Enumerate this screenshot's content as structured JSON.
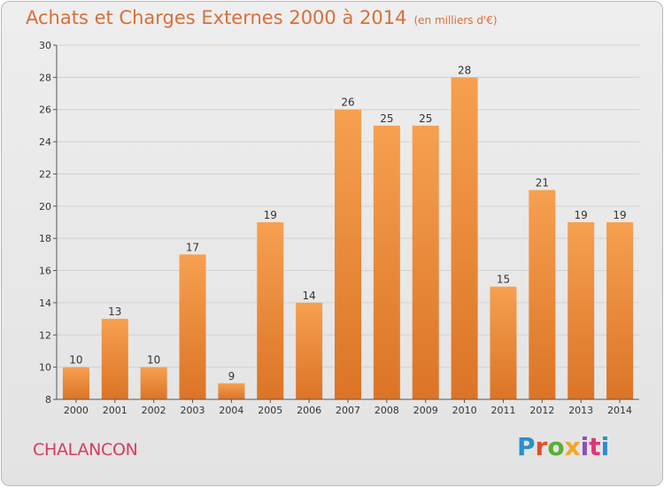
{
  "header": {
    "title": "Achats et Charges Externes 2000 à 2014",
    "unit": "(en milliers d'€)"
  },
  "footer": {
    "place": "CHALANCON",
    "logo": "Proxiti",
    "logo_colors": [
      "#2a8fd0",
      "#e54b2c",
      "#58b031",
      "#f3a623",
      "#8a4fb5",
      "#e2357a",
      "#2a8fd0"
    ]
  },
  "colors": {
    "bar_top": "#f6a050",
    "bar_bottom": "#dc7426",
    "title": "#d86f38",
    "place": "#d63c63"
  },
  "chart_data": {
    "type": "bar",
    "title": "Achats et Charges Externes 2000 à 2014",
    "xlabel": "",
    "ylabel": "",
    "categories": [
      "2000",
      "2001",
      "2002",
      "2003",
      "2004",
      "2005",
      "2006",
      "2007",
      "2008",
      "2009",
      "2010",
      "2011",
      "2012",
      "2013",
      "2014"
    ],
    "values": [
      10,
      13,
      10,
      17,
      9,
      19,
      14,
      26,
      25,
      25,
      28,
      15,
      21,
      19,
      19
    ],
    "ylim": [
      8,
      30
    ],
    "yticks": [
      8,
      10,
      12,
      14,
      16,
      18,
      20,
      22,
      24,
      26,
      28,
      30
    ],
    "grid": true,
    "legend": "none"
  }
}
